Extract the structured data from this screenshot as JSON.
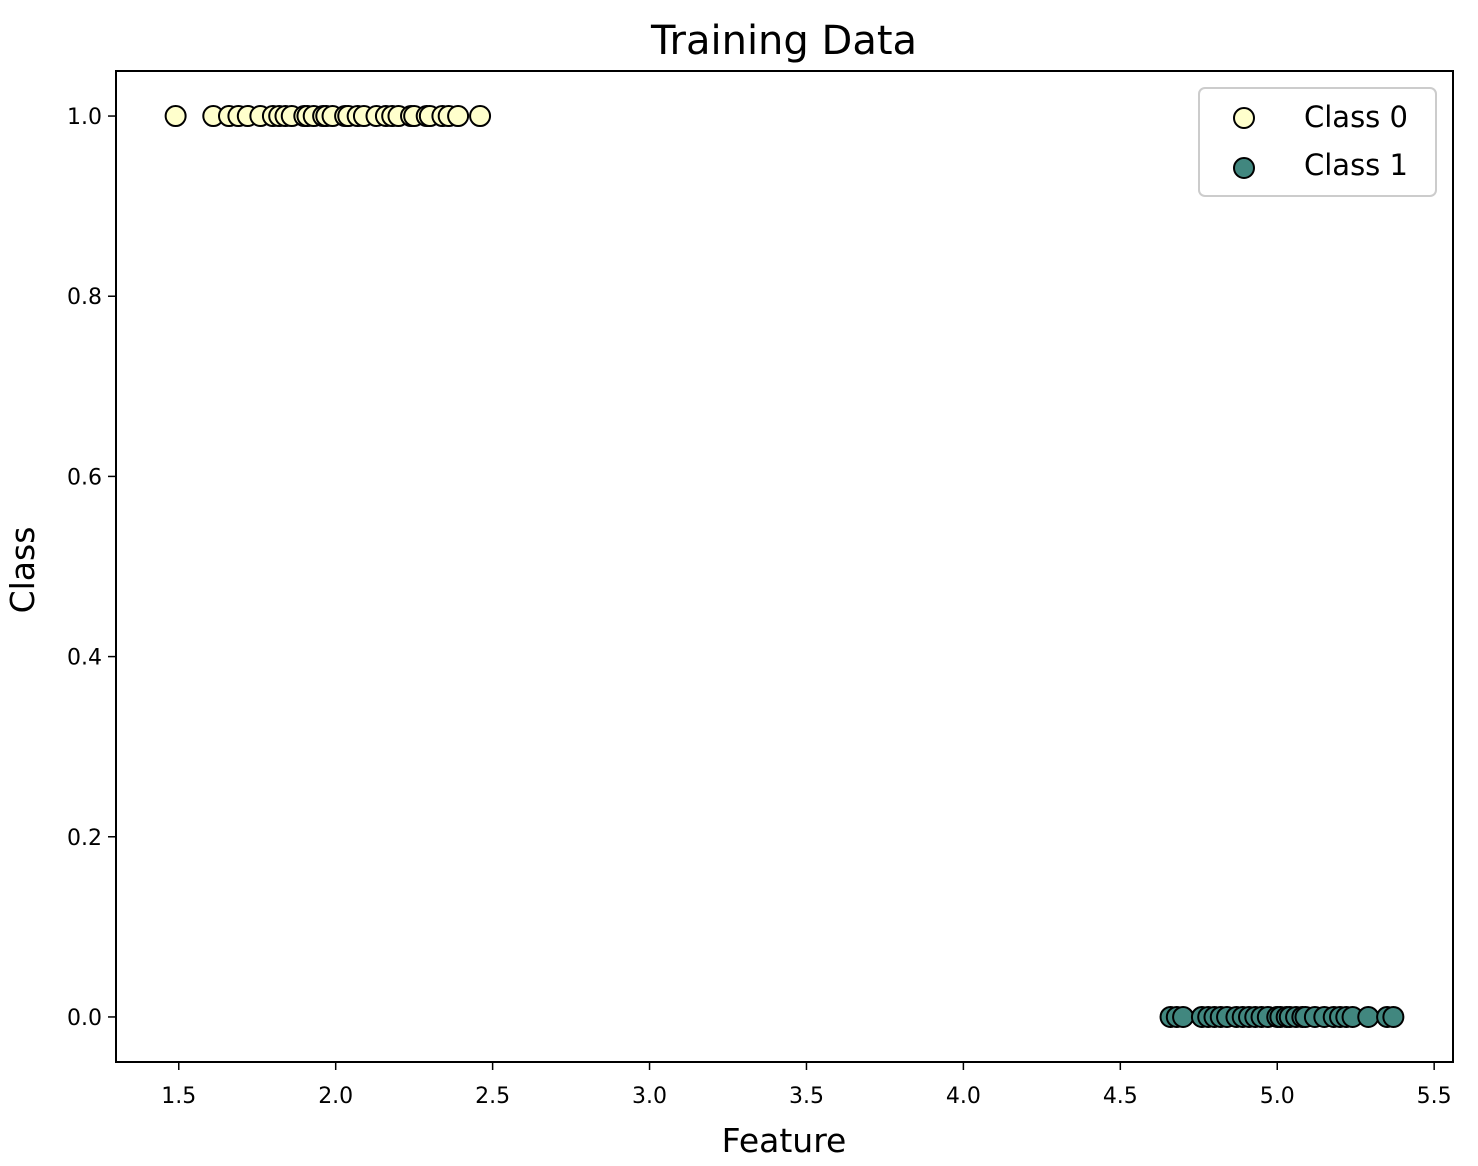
{
  "chart_data": {
    "type": "scatter",
    "title": "Training Data",
    "xlabel": "Feature",
    "ylabel": "Class",
    "xlim": [
      1.3,
      5.56
    ],
    "ylim": [
      -0.05,
      1.05
    ],
    "xticks": [
      1.5,
      2.0,
      2.5,
      3.0,
      3.5,
      4.0,
      4.5,
      5.0,
      5.5
    ],
    "xtick_labels": [
      "1.5",
      "2.0",
      "2.5",
      "3.0",
      "3.5",
      "4.0",
      "4.5",
      "5.0",
      "5.5"
    ],
    "yticks": [
      0.0,
      0.2,
      0.4,
      0.6,
      0.8,
      1.0
    ],
    "ytick_labels": [
      "0.0",
      "0.2",
      "0.4",
      "0.6",
      "0.8",
      "1.0"
    ],
    "grid": false,
    "legend_position": "top-right",
    "series": [
      {
        "name": "Class 0",
        "color": "#ffffcc",
        "edge_color": "#000000",
        "x": [
          1.49,
          1.61,
          1.66,
          1.69,
          1.72,
          1.76,
          1.8,
          1.82,
          1.84,
          1.86,
          1.9,
          1.91,
          1.93,
          1.96,
          1.97,
          1.99,
          2.03,
          2.04,
          2.07,
          2.09,
          2.13,
          2.16,
          2.18,
          2.2,
          2.24,
          2.25,
          2.29,
          2.3,
          2.34,
          2.36,
          2.39,
          2.46
        ],
        "y": [
          1,
          1,
          1,
          1,
          1,
          1,
          1,
          1,
          1,
          1,
          1,
          1,
          1,
          1,
          1,
          1,
          1,
          1,
          1,
          1,
          1,
          1,
          1,
          1,
          1,
          1,
          1,
          1,
          1,
          1,
          1,
          1
        ]
      },
      {
        "name": "Class 1",
        "color": "#41877f",
        "edge_color": "#000000",
        "x": [
          4.66,
          4.68,
          4.7,
          4.76,
          4.78,
          4.8,
          4.82,
          4.84,
          4.87,
          4.89,
          4.91,
          4.93,
          4.95,
          4.97,
          5.0,
          5.01,
          5.03,
          5.04,
          5.06,
          5.08,
          5.09,
          5.12,
          5.15,
          5.18,
          5.2,
          5.22,
          5.24,
          5.29,
          5.35,
          5.37
        ],
        "y": [
          0,
          0,
          0,
          0,
          0,
          0,
          0,
          0,
          0,
          0,
          0,
          0,
          0,
          0,
          0,
          0,
          0,
          0,
          0,
          0,
          0,
          0,
          0,
          0,
          0,
          0,
          0,
          0,
          0,
          0
        ]
      }
    ]
  }
}
